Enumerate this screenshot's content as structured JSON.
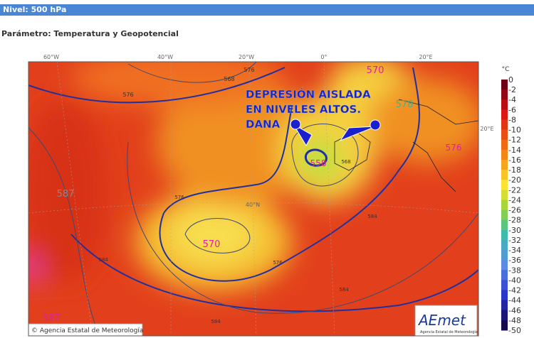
{
  "header": {
    "title": "Nivel: 500 hPa",
    "parameter": "Parámetro: Temperatura y Geopotencial"
  },
  "map": {
    "lon_labels": [
      "60°W",
      "40°W",
      "20°W",
      "0°",
      "20°E"
    ],
    "lat_labels": [
      "40°N",
      "20°E"
    ],
    "contour_labels": [
      "568",
      "576",
      "576",
      "570",
      "578",
      "576",
      "558",
      "587",
      "570",
      "587",
      "576",
      "584",
      "584",
      "584",
      "576",
      "568",
      "584"
    ],
    "annotation": [
      "DEPRESIÓN AISLADA",
      "EN NIVELES ALTOS.",
      "DANA"
    ],
    "credit": "Agencia Estatal de Meteorología"
  },
  "logo": {
    "name": "AEmet",
    "subtitle": "Agencia Estatal de Meteorología"
  },
  "colorbar": {
    "unit": "°C",
    "labels": [
      0,
      -2,
      -4,
      -6,
      -8,
      -10,
      -12,
      -14,
      -16,
      -18,
      -20,
      -22,
      -24,
      -26,
      -28,
      -30,
      -32,
      -34,
      -36,
      -38,
      -40,
      -42,
      -44,
      -46,
      -48,
      -50
    ]
  }
}
